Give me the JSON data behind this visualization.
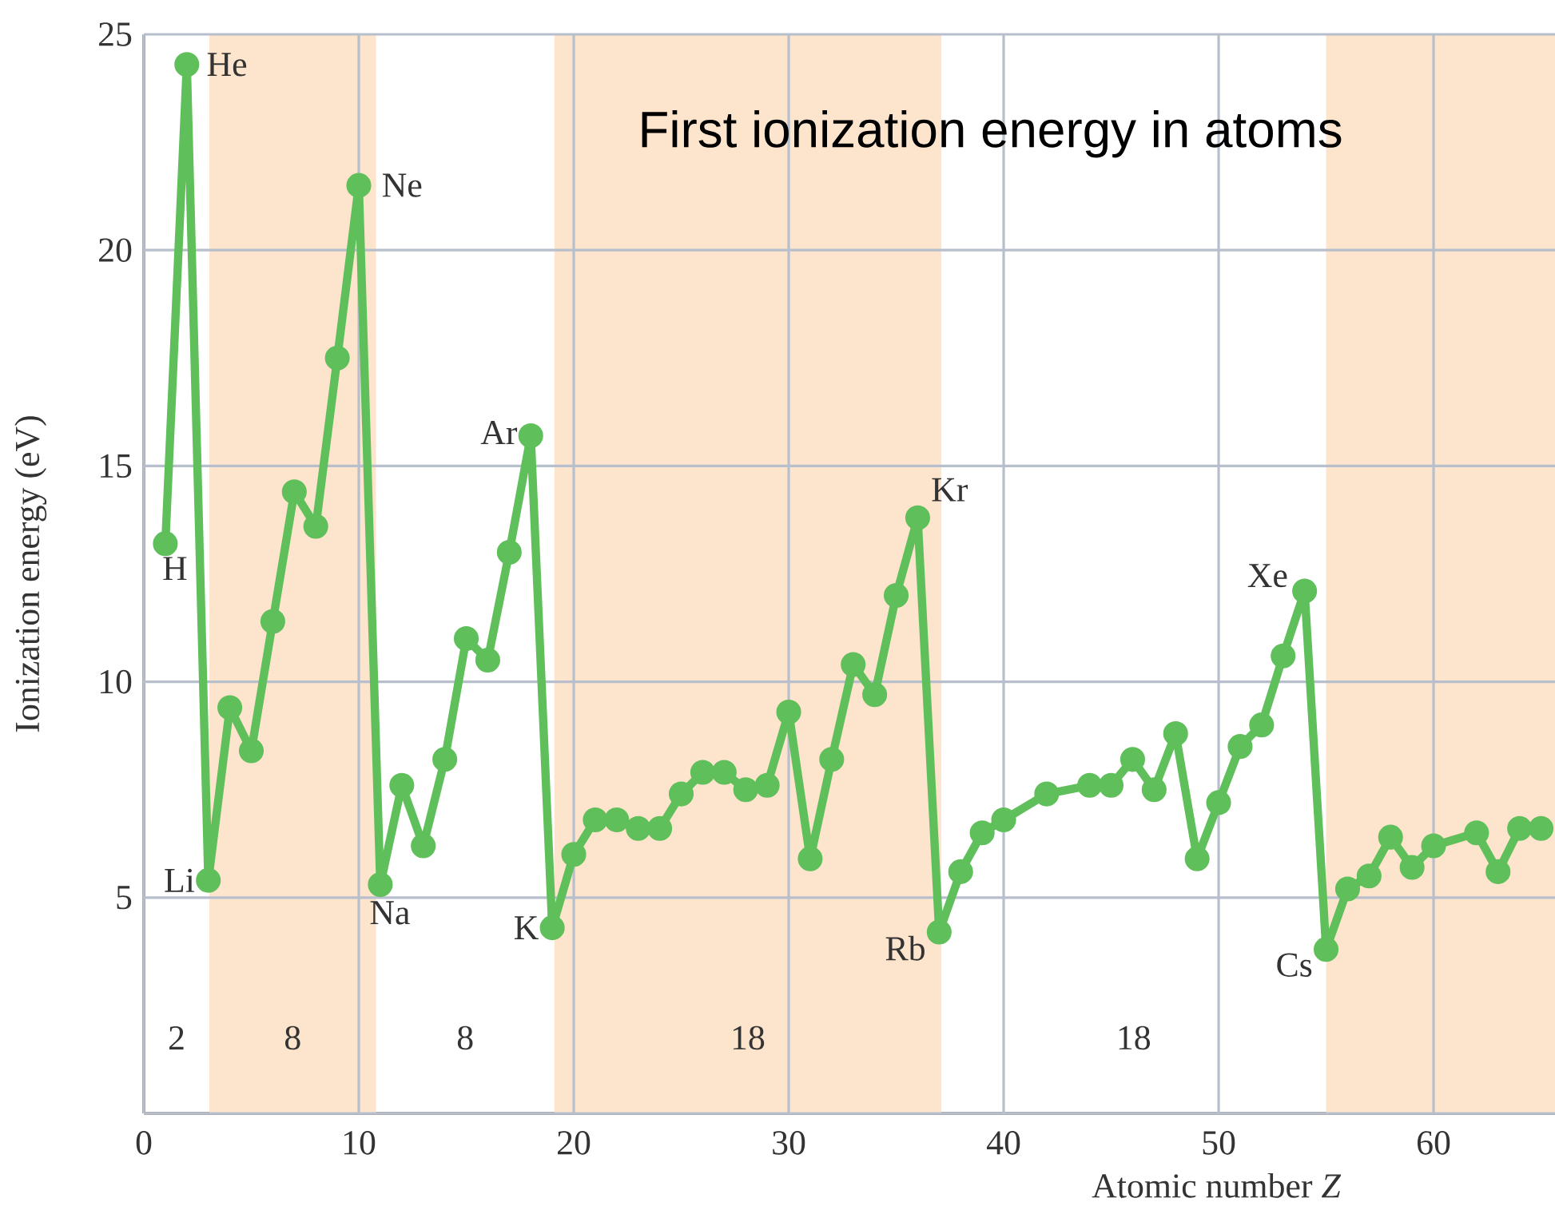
{
  "chart_data": {
    "type": "line",
    "title": "First ionization energy in atoms",
    "xlabel": "Atomic number *Z*",
    "ylabel": "Ionization energy (eV)",
    "xlim": [
      0,
      65.65
    ],
    "ylim": [
      0,
      25
    ],
    "xticks": [
      0,
      10,
      20,
      30,
      40,
      50,
      60
    ],
    "yticks": [
      {
        "value": 0,
        "label": null
      },
      5,
      10,
      15,
      20,
      25
    ],
    "grid": true,
    "marker": "circle",
    "line_style": "solid",
    "series": [
      {
        "color": "#5fbf5a",
        "x": [
          1,
          2,
          3,
          4,
          5,
          6,
          7,
          8,
          9,
          10,
          11,
          12,
          13,
          14,
          15,
          16,
          17,
          18,
          19,
          20,
          21,
          22,
          23,
          24,
          25,
          26,
          27,
          28,
          29,
          30,
          31,
          32,
          33,
          34,
          35,
          36,
          37,
          38,
          39,
          40,
          42,
          44,
          45,
          46,
          47,
          48,
          49,
          50,
          51,
          52,
          53,
          54,
          55,
          56,
          57,
          58,
          59,
          60,
          62,
          63,
          64,
          65
        ],
        "values": [
          13.2,
          24.3,
          5.4,
          9.4,
          8.4,
          11.4,
          14.4,
          13.6,
          17.5,
          21.5,
          5.3,
          7.6,
          6.2,
          8.2,
          11.0,
          10.5,
          13.0,
          15.7,
          4.3,
          6.0,
          6.8,
          6.8,
          6.6,
          6.6,
          7.4,
          7.9,
          7.9,
          7.5,
          7.6,
          9.3,
          5.9,
          8.2,
          10.4,
          9.7,
          12.0,
          13.8,
          4.2,
          5.6,
          6.5,
          6.8,
          7.4,
          7.6,
          7.6,
          8.2,
          7.5,
          8.8,
          5.9,
          7.2,
          8.5,
          9.0,
          10.6,
          12.1,
          3.8,
          5.2,
          5.5,
          6.4,
          5.7,
          6.2,
          6.5,
          5.6,
          6.6,
          6.6
        ]
      }
    ],
    "bands": [
      {
        "axis": "x",
        "from": 3.05,
        "to": 10.8,
        "color": "#fde4cc"
      },
      {
        "axis": "x",
        "from": 19.1,
        "to": 37.1,
        "color": "#fde4cc"
      },
      {
        "axis": "x",
        "from": 55.0,
        "to": 65.65,
        "color": "#fde4cc"
      }
    ],
    "annotations": [
      {
        "text": "H",
        "x": 1,
        "y": 13.2
      },
      {
        "text": "He",
        "x": 2,
        "y": 24.3
      },
      {
        "text": "Li",
        "x": 3,
        "y": 5.4
      },
      {
        "text": "Ne",
        "x": 10,
        "y": 21.5
      },
      {
        "text": "Na",
        "x": 11,
        "y": 5.3
      },
      {
        "text": "Ar",
        "x": 18,
        "y": 15.7
      },
      {
        "text": "K",
        "x": 19,
        "y": 4.3
      },
      {
        "text": "Kr",
        "x": 36,
        "y": 13.8
      },
      {
        "text": "Rb",
        "x": 37,
        "y": 4.2
      },
      {
        "text": "Xe",
        "x": 54,
        "y": 12.1
      },
      {
        "text": "Cs",
        "x": 55,
        "y": 3.8
      },
      "2",
      "8",
      "8",
      "18",
      "18"
    ]
  }
}
